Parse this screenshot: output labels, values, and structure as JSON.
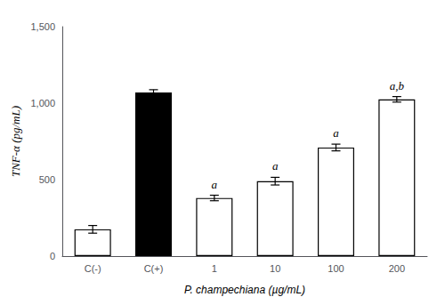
{
  "chart_data": {
    "type": "bar",
    "categories": [
      "C(-)",
      "C(+)",
      "1",
      "10",
      "100",
      "200"
    ],
    "values": [
      175,
      1070,
      380,
      490,
      710,
      1025
    ],
    "errors": [
      25,
      18,
      18,
      25,
      22,
      18
    ],
    "colors": [
      "white",
      "black",
      "white",
      "white",
      "white",
      "white"
    ],
    "annotations": [
      null,
      null,
      "a",
      "a",
      "a",
      "a,b"
    ],
    "ylabel": "TNF-α (pg/mL)",
    "xlabel": "P. champechiana (µg/mL)",
    "ylim": [
      0,
      1500
    ],
    "yticks": [
      0,
      500,
      1000,
      1500
    ],
    "grid": false
  }
}
